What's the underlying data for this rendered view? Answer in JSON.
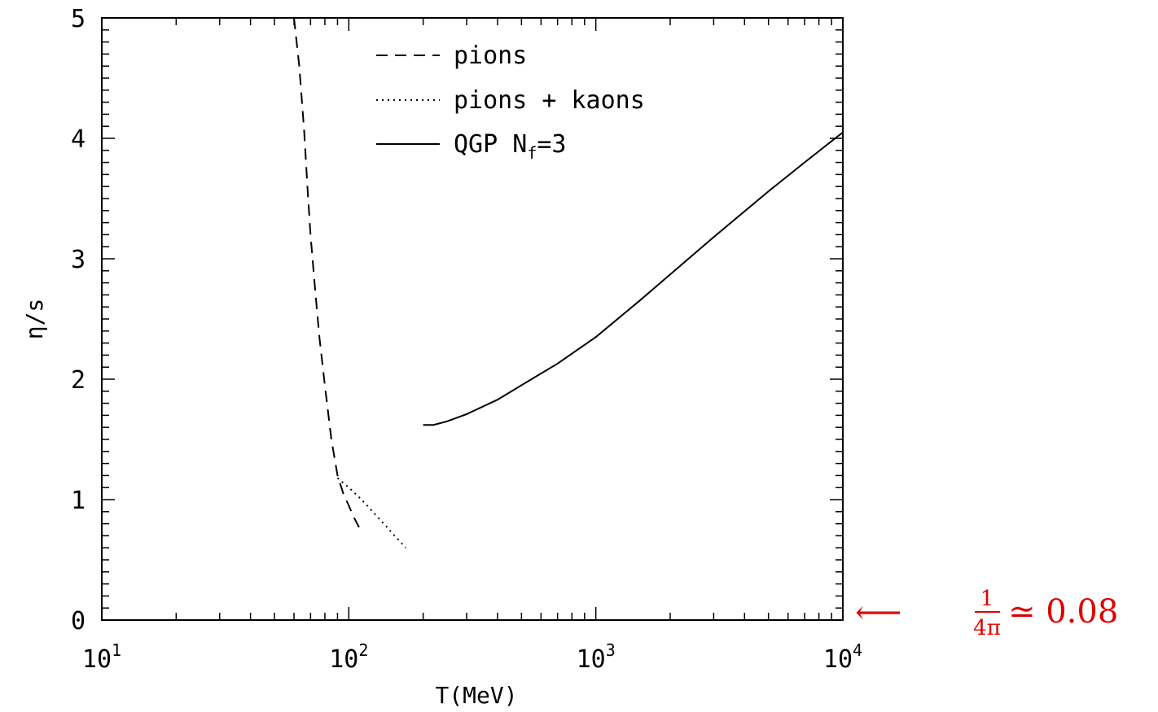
{
  "chart_data": {
    "type": "line",
    "xlabel": "T(MeV)",
    "ylabel": "η/s",
    "xscale": "log",
    "xlim": [
      10,
      10000
    ],
    "ylim": [
      0,
      5
    ],
    "x_ticks": [
      {
        "value": 10,
        "base": "10",
        "exp": "1"
      },
      {
        "value": 100,
        "base": "10",
        "exp": "2"
      },
      {
        "value": 1000,
        "base": "10",
        "exp": "3"
      },
      {
        "value": 10000,
        "base": "10",
        "exp": "4"
      }
    ],
    "y_ticks": [
      "0",
      "1",
      "2",
      "3",
      "4",
      "5"
    ],
    "legend_position": "top-center",
    "series": [
      {
        "name": "pions",
        "style": "dashed",
        "color": "#000000",
        "x": [
          60,
          63,
          66,
          68,
          70,
          73,
          76,
          80,
          85,
          90,
          95,
          100,
          105,
          110
        ],
        "y": [
          5.0,
          4.6,
          4.05,
          3.6,
          3.2,
          2.75,
          2.35,
          1.95,
          1.5,
          1.2,
          1.05,
          0.95,
          0.85,
          0.77
        ]
      },
      {
        "name": "pions + kaons",
        "style": "dotted",
        "color": "#000000",
        "x": [
          90,
          100,
          110,
          120,
          130,
          140,
          150,
          160,
          170
        ],
        "y": [
          1.18,
          1.1,
          1.02,
          0.94,
          0.86,
          0.79,
          0.72,
          0.66,
          0.6
        ]
      },
      {
        "name_main": "QGP N",
        "name_sub": "f",
        "name_tail": "=3",
        "style": "solid",
        "color": "#000000",
        "x": [
          200,
          220,
          250,
          300,
          400,
          500,
          700,
          1000,
          1500,
          2000,
          3000,
          5000,
          7000,
          10000
        ],
        "y": [
          1.62,
          1.62,
          1.65,
          1.71,
          1.83,
          1.95,
          2.13,
          2.35,
          2.65,
          2.87,
          3.18,
          3.56,
          3.8,
          4.05
        ]
      }
    ],
    "annotation": {
      "numerator": "1",
      "denominator": "4π",
      "relation": "≃ 0.08",
      "arrow": "⟵",
      "color": "#e00000"
    }
  }
}
